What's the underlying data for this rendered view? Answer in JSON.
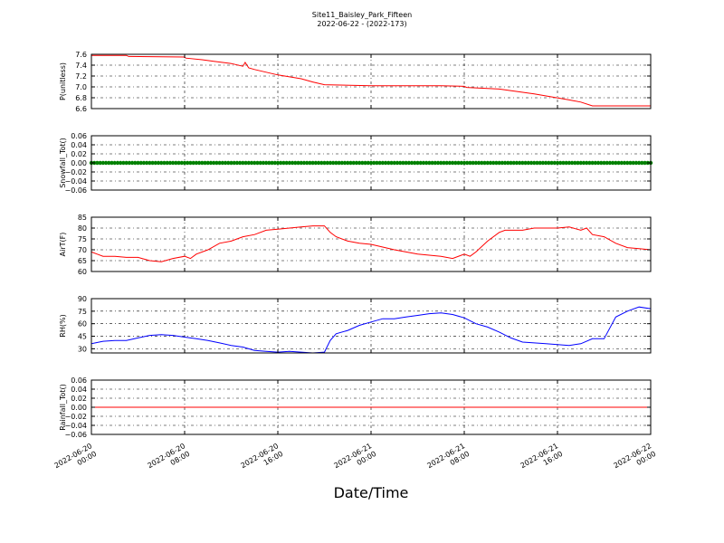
{
  "figure": {
    "title": "Site11_Baisley_Park_Fifteen",
    "subtitle": "2022-06-22 - (2022-173)",
    "xlabel": "Date/Time",
    "x_ticks": [
      {
        "hour": 0,
        "line1": "2022-06-20",
        "line2": "00:00"
      },
      {
        "hour": 8,
        "line1": "2022-06-20",
        "line2": "08:00"
      },
      {
        "hour": 16,
        "line1": "2022-06-20",
        "line2": "16:00"
      },
      {
        "hour": 24,
        "line1": "2022-06-21",
        "line2": "00:00"
      },
      {
        "hour": 32,
        "line1": "2022-06-21",
        "line2": "08:00"
      },
      {
        "hour": 40,
        "line1": "2022-06-21",
        "line2": "16:00"
      },
      {
        "hour": 48,
        "line1": "2022-06-22",
        "line2": "00:00"
      }
    ]
  },
  "chart_data": [
    {
      "type": "line",
      "ylabel": "P(unitless)",
      "color": "#ff0000",
      "ylim": [
        6.6,
        7.6
      ],
      "yticks": [
        "6.6",
        "6.8",
        "7.0",
        "7.2",
        "7.4",
        "7.6"
      ],
      "xlim": [
        "2022-06-20 00:00",
        "2022-06-22 00:00"
      ],
      "x_hours": [
        0,
        3,
        3.2,
        8,
        8.1,
        9.5,
        10.5,
        12,
        13,
        13.2,
        13.5,
        14,
        16,
        18,
        19,
        20,
        24,
        30,
        32,
        32.2,
        35,
        38,
        41,
        42,
        43,
        46,
        48
      ],
      "y": [
        7.58,
        7.58,
        7.56,
        7.55,
        7.53,
        7.5,
        7.47,
        7.43,
        7.38,
        7.45,
        7.35,
        7.32,
        7.22,
        7.15,
        7.09,
        7.04,
        7.02,
        7.02,
        7.01,
        6.99,
        6.96,
        6.87,
        6.76,
        6.72,
        6.65,
        6.65,
        6.65
      ]
    },
    {
      "type": "scatter",
      "ylabel": "Snowfall_Tot()",
      "color": "#008000",
      "ylim": [
        -0.06,
        0.06
      ],
      "yticks": [
        "−0.06",
        "−0.04",
        "−0.02",
        "0.00",
        "0.02",
        "0.04",
        "0.06"
      ],
      "xlim": [
        "2022-06-20 00:00",
        "2022-06-22 00:00"
      ],
      "x_hours": [
        0,
        48
      ],
      "y": [
        0,
        0
      ],
      "interval_hours": 0.25
    },
    {
      "type": "line",
      "ylabel": "AirT(F)",
      "color": "#ff0000",
      "ylim": [
        60,
        85
      ],
      "yticks": [
        "60",
        "65",
        "70",
        "75",
        "80",
        "85"
      ],
      "xlim": [
        "2022-06-20 00:00",
        "2022-06-22 00:00"
      ],
      "x_hours": [
        0,
        0.5,
        1,
        2,
        3,
        4,
        5,
        6,
        7,
        8,
        8.5,
        9,
        10,
        11,
        12,
        13,
        14,
        15,
        16,
        17,
        18,
        19,
        20,
        20.5,
        21,
        22,
        23,
        24,
        26,
        28,
        30,
        31,
        32,
        32.5,
        33,
        34,
        35,
        35.5,
        36,
        37,
        38,
        39,
        40,
        41,
        42,
        42.5,
        43,
        44,
        45,
        46,
        47,
        48
      ],
      "y": [
        69,
        68,
        67,
        67,
        66.5,
        66.5,
        65,
        64.5,
        66,
        67,
        66,
        68,
        70,
        73,
        74,
        76,
        77,
        79,
        79.5,
        80,
        80.5,
        81,
        81,
        78,
        76,
        74,
        73,
        72.5,
        70,
        68,
        67,
        66,
        68,
        67,
        69,
        74,
        78,
        79,
        79,
        79,
        80,
        80,
        80,
        80.5,
        79,
        80,
        77,
        76,
        73,
        71,
        70.5,
        70
      ]
    },
    {
      "type": "line",
      "ylabel": "RH(%)",
      "color": "#0000ff",
      "ylim": [
        25,
        90
      ],
      "yticks": [
        "30",
        "45",
        "60",
        "75",
        "90"
      ],
      "xlim": [
        "2022-06-20 00:00",
        "2022-06-22 00:00"
      ],
      "x_hours": [
        0,
        1,
        2,
        3,
        4,
        5,
        6,
        7,
        8,
        9,
        10,
        11,
        12,
        13,
        14,
        15,
        16,
        17,
        18,
        19,
        20,
        20.5,
        21,
        22,
        23,
        24,
        25,
        26,
        27,
        28,
        29,
        30,
        31,
        32,
        33,
        34,
        35,
        36,
        37,
        38,
        39,
        40,
        41,
        42,
        43,
        44,
        45,
        46,
        47,
        48
      ],
      "y": [
        36,
        39,
        40,
        40,
        43,
        46,
        47,
        46,
        44,
        42,
        40,
        37,
        34,
        32,
        28,
        27,
        26,
        27,
        26,
        25,
        26,
        40,
        48,
        52,
        58,
        62,
        66,
        66,
        68,
        70,
        72,
        73,
        71,
        67,
        60,
        56,
        50,
        43,
        38,
        37,
        36,
        35,
        34,
        36,
        42,
        42,
        68,
        75,
        80,
        78
      ]
    },
    {
      "type": "line",
      "ylabel": "Rainfall_Tot()",
      "color": "#ff0000",
      "ylim": [
        -0.06,
        0.06
      ],
      "yticks": [
        "−0.06",
        "−0.04",
        "−0.02",
        "0.00",
        "0.02",
        "0.04",
        "0.06"
      ],
      "xlim": [
        "2022-06-20 00:00",
        "2022-06-22 00:00"
      ],
      "x_hours": [
        0,
        48
      ],
      "y": [
        0,
        0
      ]
    }
  ]
}
